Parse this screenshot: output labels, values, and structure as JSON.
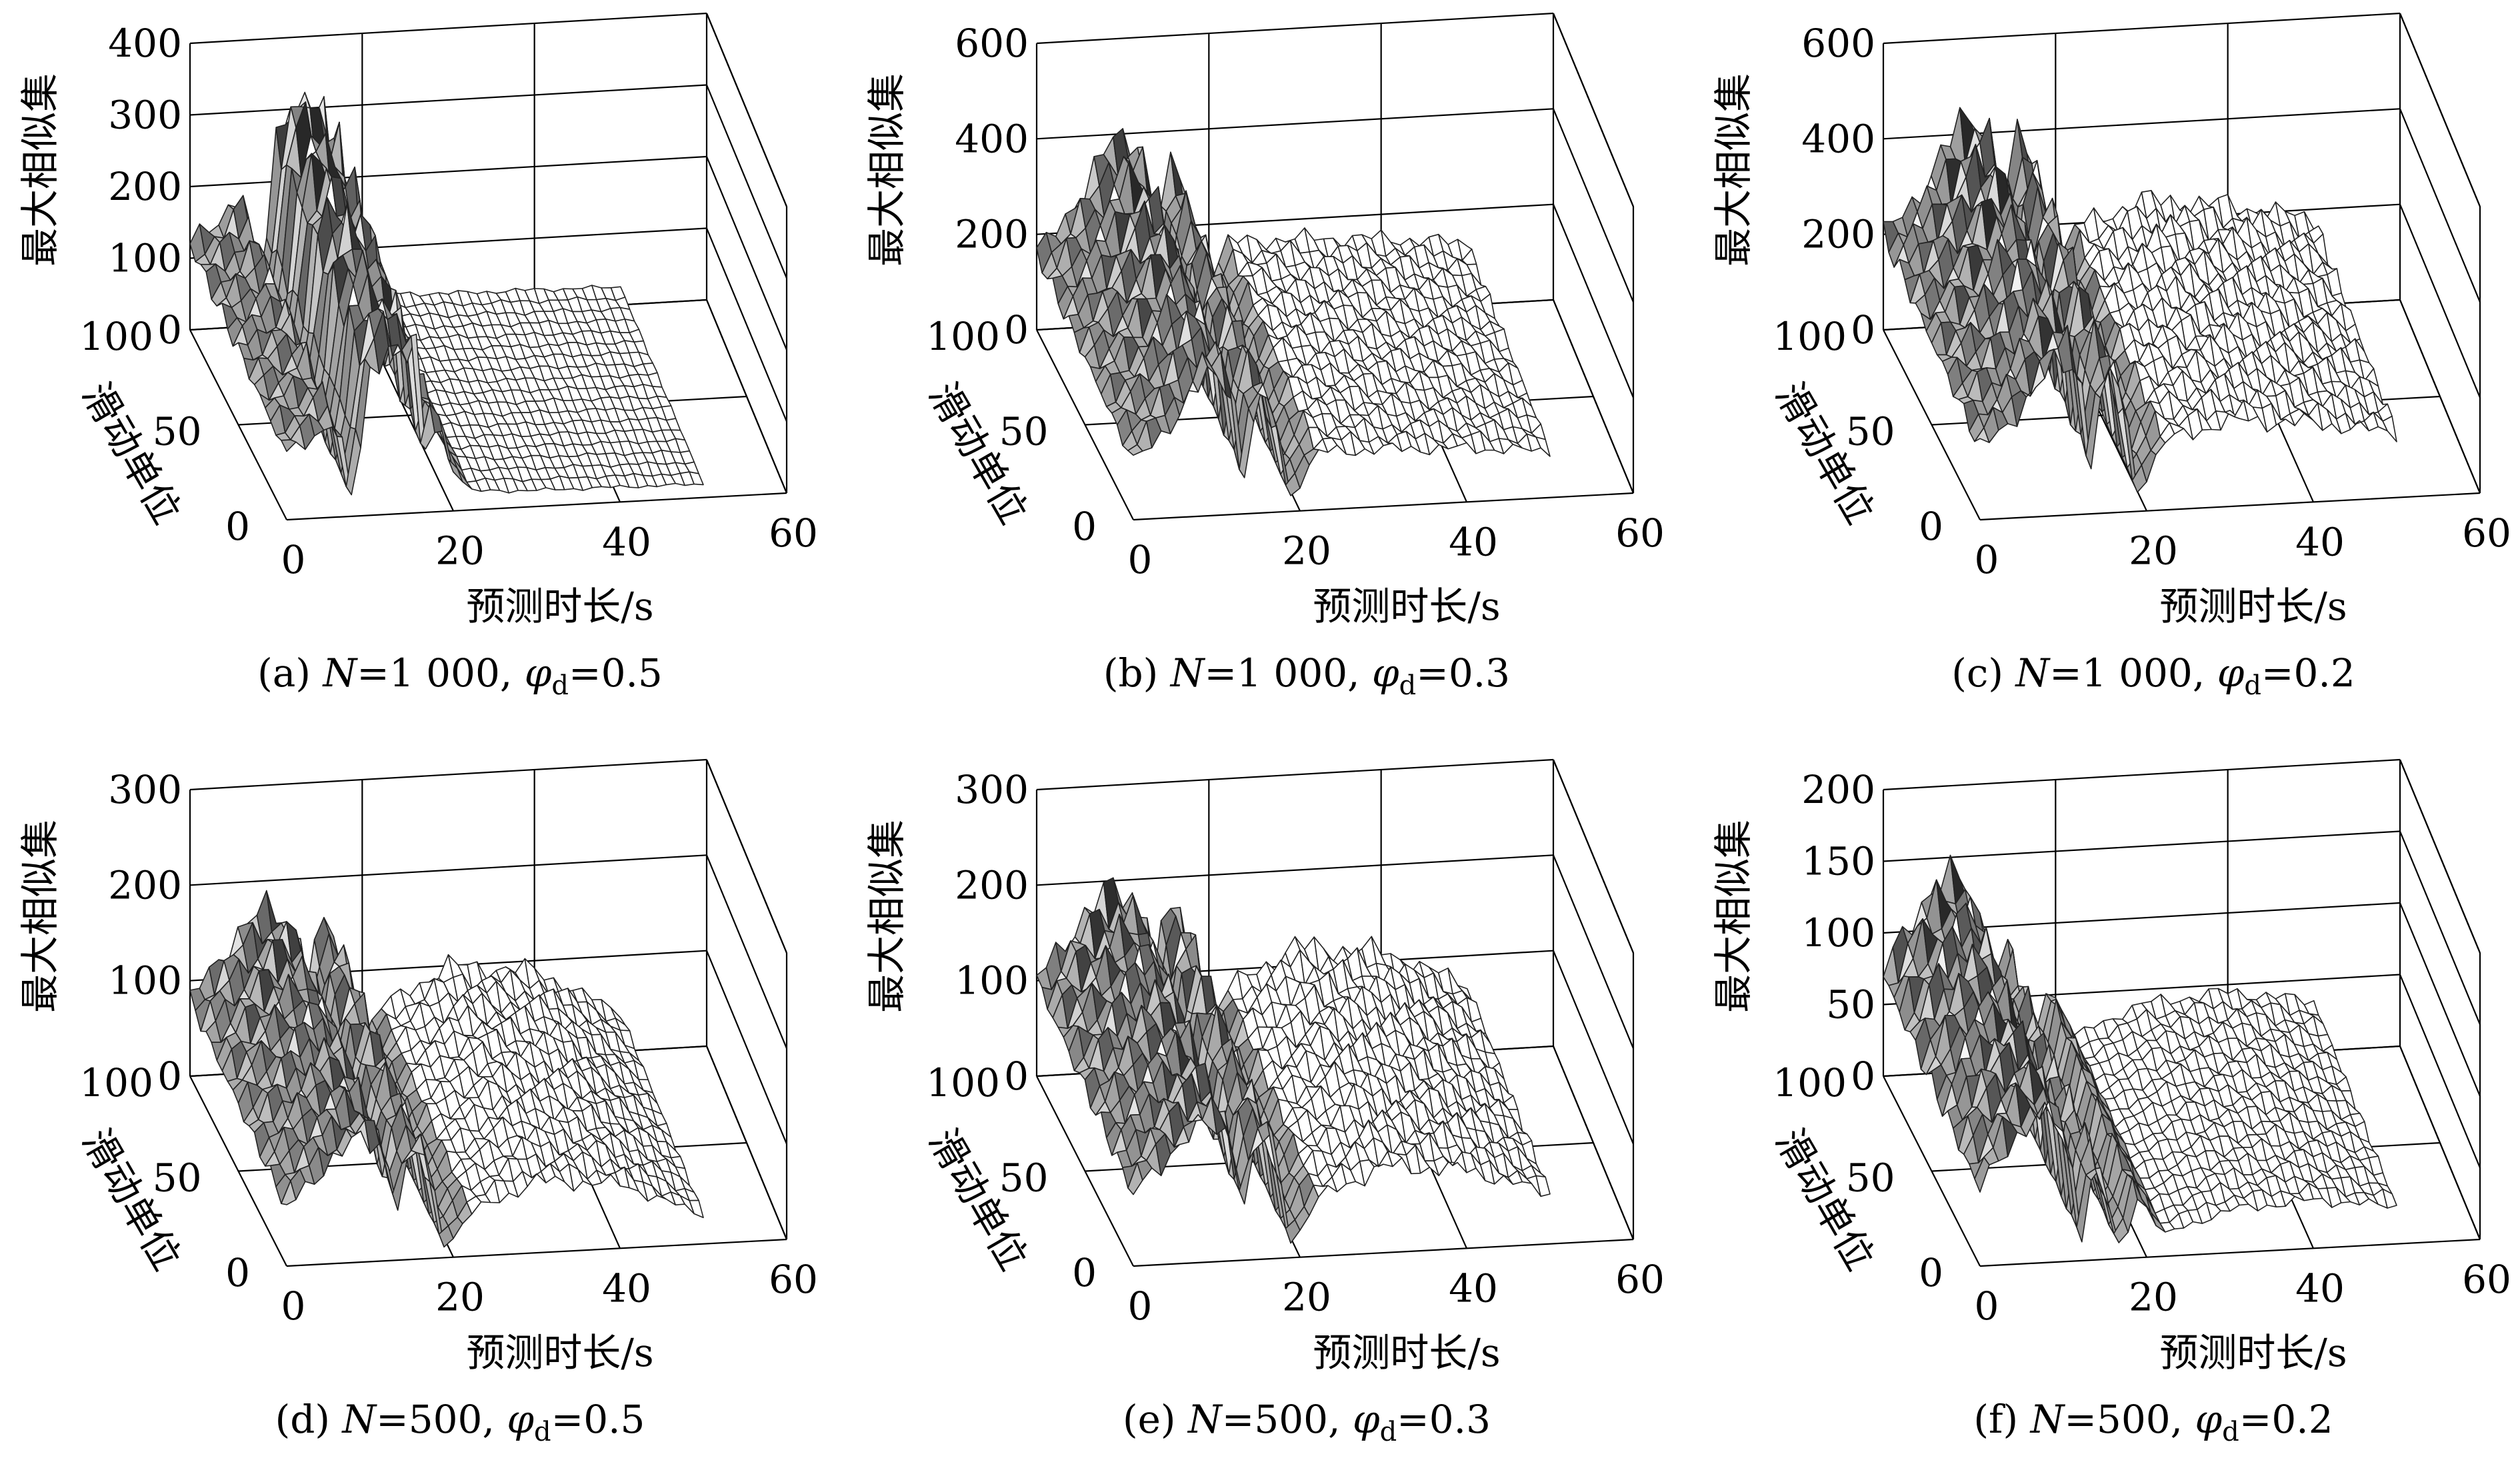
{
  "chart_data": [
    {
      "type": "surface",
      "caption": {
        "id": "(a)",
        "N": "1 000",
        "phi": "0.5"
      },
      "xlabel": "预测时长/s",
      "ylabel": "滑动单位",
      "zlabel": "最大相似集",
      "xticks": [
        "0",
        "20",
        "40",
        "60"
      ],
      "yticks": [
        "0",
        "50",
        "100"
      ],
      "zticks": [
        "0",
        "100",
        "200",
        "300",
        "400"
      ],
      "xlim": [
        0,
        60
      ],
      "ylim": [
        0,
        100
      ],
      "zlim": [
        0,
        400
      ],
      "profile": [
        {
          "x": 0,
          "z": 120
        },
        {
          "x": 3,
          "z": 150
        },
        {
          "x": 6,
          "z": 190
        },
        {
          "x": 8,
          "z": 20
        },
        {
          "x": 10,
          "z": 260
        },
        {
          "x": 12,
          "z": 330
        },
        {
          "x": 14,
          "z": 290
        },
        {
          "x": 16,
          "z": 300
        },
        {
          "x": 17,
          "z": 20
        },
        {
          "x": 18,
          "z": 200
        },
        {
          "x": 20,
          "z": 80
        },
        {
          "x": 22,
          "z": 35
        },
        {
          "x": 30,
          "z": 30
        },
        {
          "x": 40,
          "z": 28
        },
        {
          "x": 50,
          "z": 25
        }
      ]
    },
    {
      "type": "surface",
      "caption": {
        "id": "(b)",
        "N": "1 000",
        "phi": "0.3"
      },
      "xlabel": "预测时长/s",
      "ylabel": "滑动单位",
      "zlabel": "最大相似集",
      "xticks": [
        "0",
        "20",
        "40",
        "60"
      ],
      "yticks": [
        "0",
        "50",
        "100"
      ],
      "zticks": [
        "0",
        "200",
        "400",
        "600"
      ],
      "xlim": [
        0,
        60
      ],
      "ylim": [
        0,
        100
      ],
      "zlim": [
        0,
        600
      ],
      "profile": [
        {
          "x": 0,
          "z": 160
        },
        {
          "x": 3,
          "z": 230
        },
        {
          "x": 6,
          "z": 300
        },
        {
          "x": 9,
          "z": 390
        },
        {
          "x": 12,
          "z": 380
        },
        {
          "x": 13,
          "z": 60
        },
        {
          "x": 15,
          "z": 330
        },
        {
          "x": 17,
          "z": 280
        },
        {
          "x": 19,
          "z": 30
        },
        {
          "x": 22,
          "z": 160
        },
        {
          "x": 30,
          "z": 160
        },
        {
          "x": 40,
          "z": 150
        },
        {
          "x": 50,
          "z": 130
        }
      ]
    },
    {
      "type": "surface",
      "caption": {
        "id": "(c)",
        "N": "1 000",
        "phi": "0.2"
      },
      "xlabel": "预测时长/s",
      "ylabel": "滑动单位",
      "zlabel": "最大相似集",
      "xticks": [
        "0",
        "20",
        "40",
        "60"
      ],
      "yticks": [
        "0",
        "50",
        "100"
      ],
      "zticks": [
        "0",
        "200",
        "400",
        "600"
      ],
      "xlim": [
        0,
        60
      ],
      "ylim": [
        0,
        100
      ],
      "zlim": [
        0,
        600
      ],
      "profile": [
        {
          "x": 0,
          "z": 200
        },
        {
          "x": 3,
          "z": 260
        },
        {
          "x": 6,
          "z": 330
        },
        {
          "x": 9,
          "z": 420
        },
        {
          "x": 12,
          "z": 440
        },
        {
          "x": 13,
          "z": 90
        },
        {
          "x": 15,
          "z": 380
        },
        {
          "x": 17,
          "z": 360
        },
        {
          "x": 19,
          "z": 40
        },
        {
          "x": 22,
          "z": 190
        },
        {
          "x": 30,
          "z": 240
        },
        {
          "x": 40,
          "z": 220
        },
        {
          "x": 50,
          "z": 180
        }
      ]
    },
    {
      "type": "surface",
      "caption": {
        "id": "(d)",
        "N": "500",
        "phi": "0.5"
      },
      "xlabel": "预测时长/s",
      "ylabel": "滑动单位",
      "zlabel": "最大相似集",
      "xticks": [
        "0",
        "20",
        "40",
        "60"
      ],
      "yticks": [
        "0",
        "50",
        "100"
      ],
      "zticks": [
        "0",
        "100",
        "200",
        "300"
      ],
      "xlim": [
        0,
        60
      ],
      "ylim": [
        0,
        100
      ],
      "zlim": [
        0,
        300
      ],
      "profile": [
        {
          "x": 0,
          "z": 80
        },
        {
          "x": 3,
          "z": 120
        },
        {
          "x": 6,
          "z": 150
        },
        {
          "x": 9,
          "z": 170
        },
        {
          "x": 12,
          "z": 160
        },
        {
          "x": 13,
          "z": 60
        },
        {
          "x": 15,
          "z": 150
        },
        {
          "x": 17,
          "z": 140
        },
        {
          "x": 19,
          "z": 10
        },
        {
          "x": 22,
          "z": 60
        },
        {
          "x": 30,
          "z": 100
        },
        {
          "x": 40,
          "z": 90
        },
        {
          "x": 50,
          "z": 40
        }
      ]
    },
    {
      "type": "surface",
      "caption": {
        "id": "(e)",
        "N": "500",
        "phi": "0.3"
      },
      "xlabel": "预测时长/s",
      "ylabel": "滑动单位",
      "zlabel": "最大相似集",
      "xticks": [
        "0",
        "20",
        "40",
        "60"
      ],
      "yticks": [
        "0",
        "50",
        "100"
      ],
      "zticks": [
        "0",
        "100",
        "200",
        "300"
      ],
      "xlim": [
        0,
        60
      ],
      "ylim": [
        0,
        100
      ],
      "zlim": [
        0,
        300
      ],
      "profile": [
        {
          "x": 0,
          "z": 100
        },
        {
          "x": 3,
          "z": 140
        },
        {
          "x": 6,
          "z": 170
        },
        {
          "x": 9,
          "z": 190
        },
        {
          "x": 12,
          "z": 180
        },
        {
          "x": 13,
          "z": 60
        },
        {
          "x": 15,
          "z": 170
        },
        {
          "x": 17,
          "z": 160
        },
        {
          "x": 19,
          "z": 15
        },
        {
          "x": 22,
          "z": 80
        },
        {
          "x": 30,
          "z": 120
        },
        {
          "x": 40,
          "z": 110
        },
        {
          "x": 50,
          "z": 70
        }
      ]
    },
    {
      "type": "surface",
      "caption": {
        "id": "(f)",
        "N": "500",
        "phi": "0.2"
      },
      "xlabel": "预测时长/s",
      "ylabel": "滑动单位",
      "zlabel": "最大相似集",
      "xticks": [
        "0",
        "20",
        "40",
        "60"
      ],
      "yticks": [
        "0",
        "50",
        "100"
      ],
      "zticks": [
        "0",
        "50",
        "100",
        "150",
        "200"
      ],
      "xlim": [
        0,
        60
      ],
      "ylim": [
        0,
        100
      ],
      "zlim": [
        0,
        200
      ],
      "profile": [
        {
          "x": 0,
          "z": 70
        },
        {
          "x": 3,
          "z": 110
        },
        {
          "x": 6,
          "z": 130
        },
        {
          "x": 9,
          "z": 135
        },
        {
          "x": 11,
          "z": 100
        },
        {
          "x": 12,
          "z": 10
        },
        {
          "x": 14,
          "z": 100
        },
        {
          "x": 16,
          "z": 30
        },
        {
          "x": 17,
          "z": 5
        },
        {
          "x": 19,
          "z": 60
        },
        {
          "x": 22,
          "z": 20
        },
        {
          "x": 30,
          "z": 40
        },
        {
          "x": 40,
          "z": 45
        },
        {
          "x": 50,
          "z": 35
        }
      ]
    }
  ]
}
